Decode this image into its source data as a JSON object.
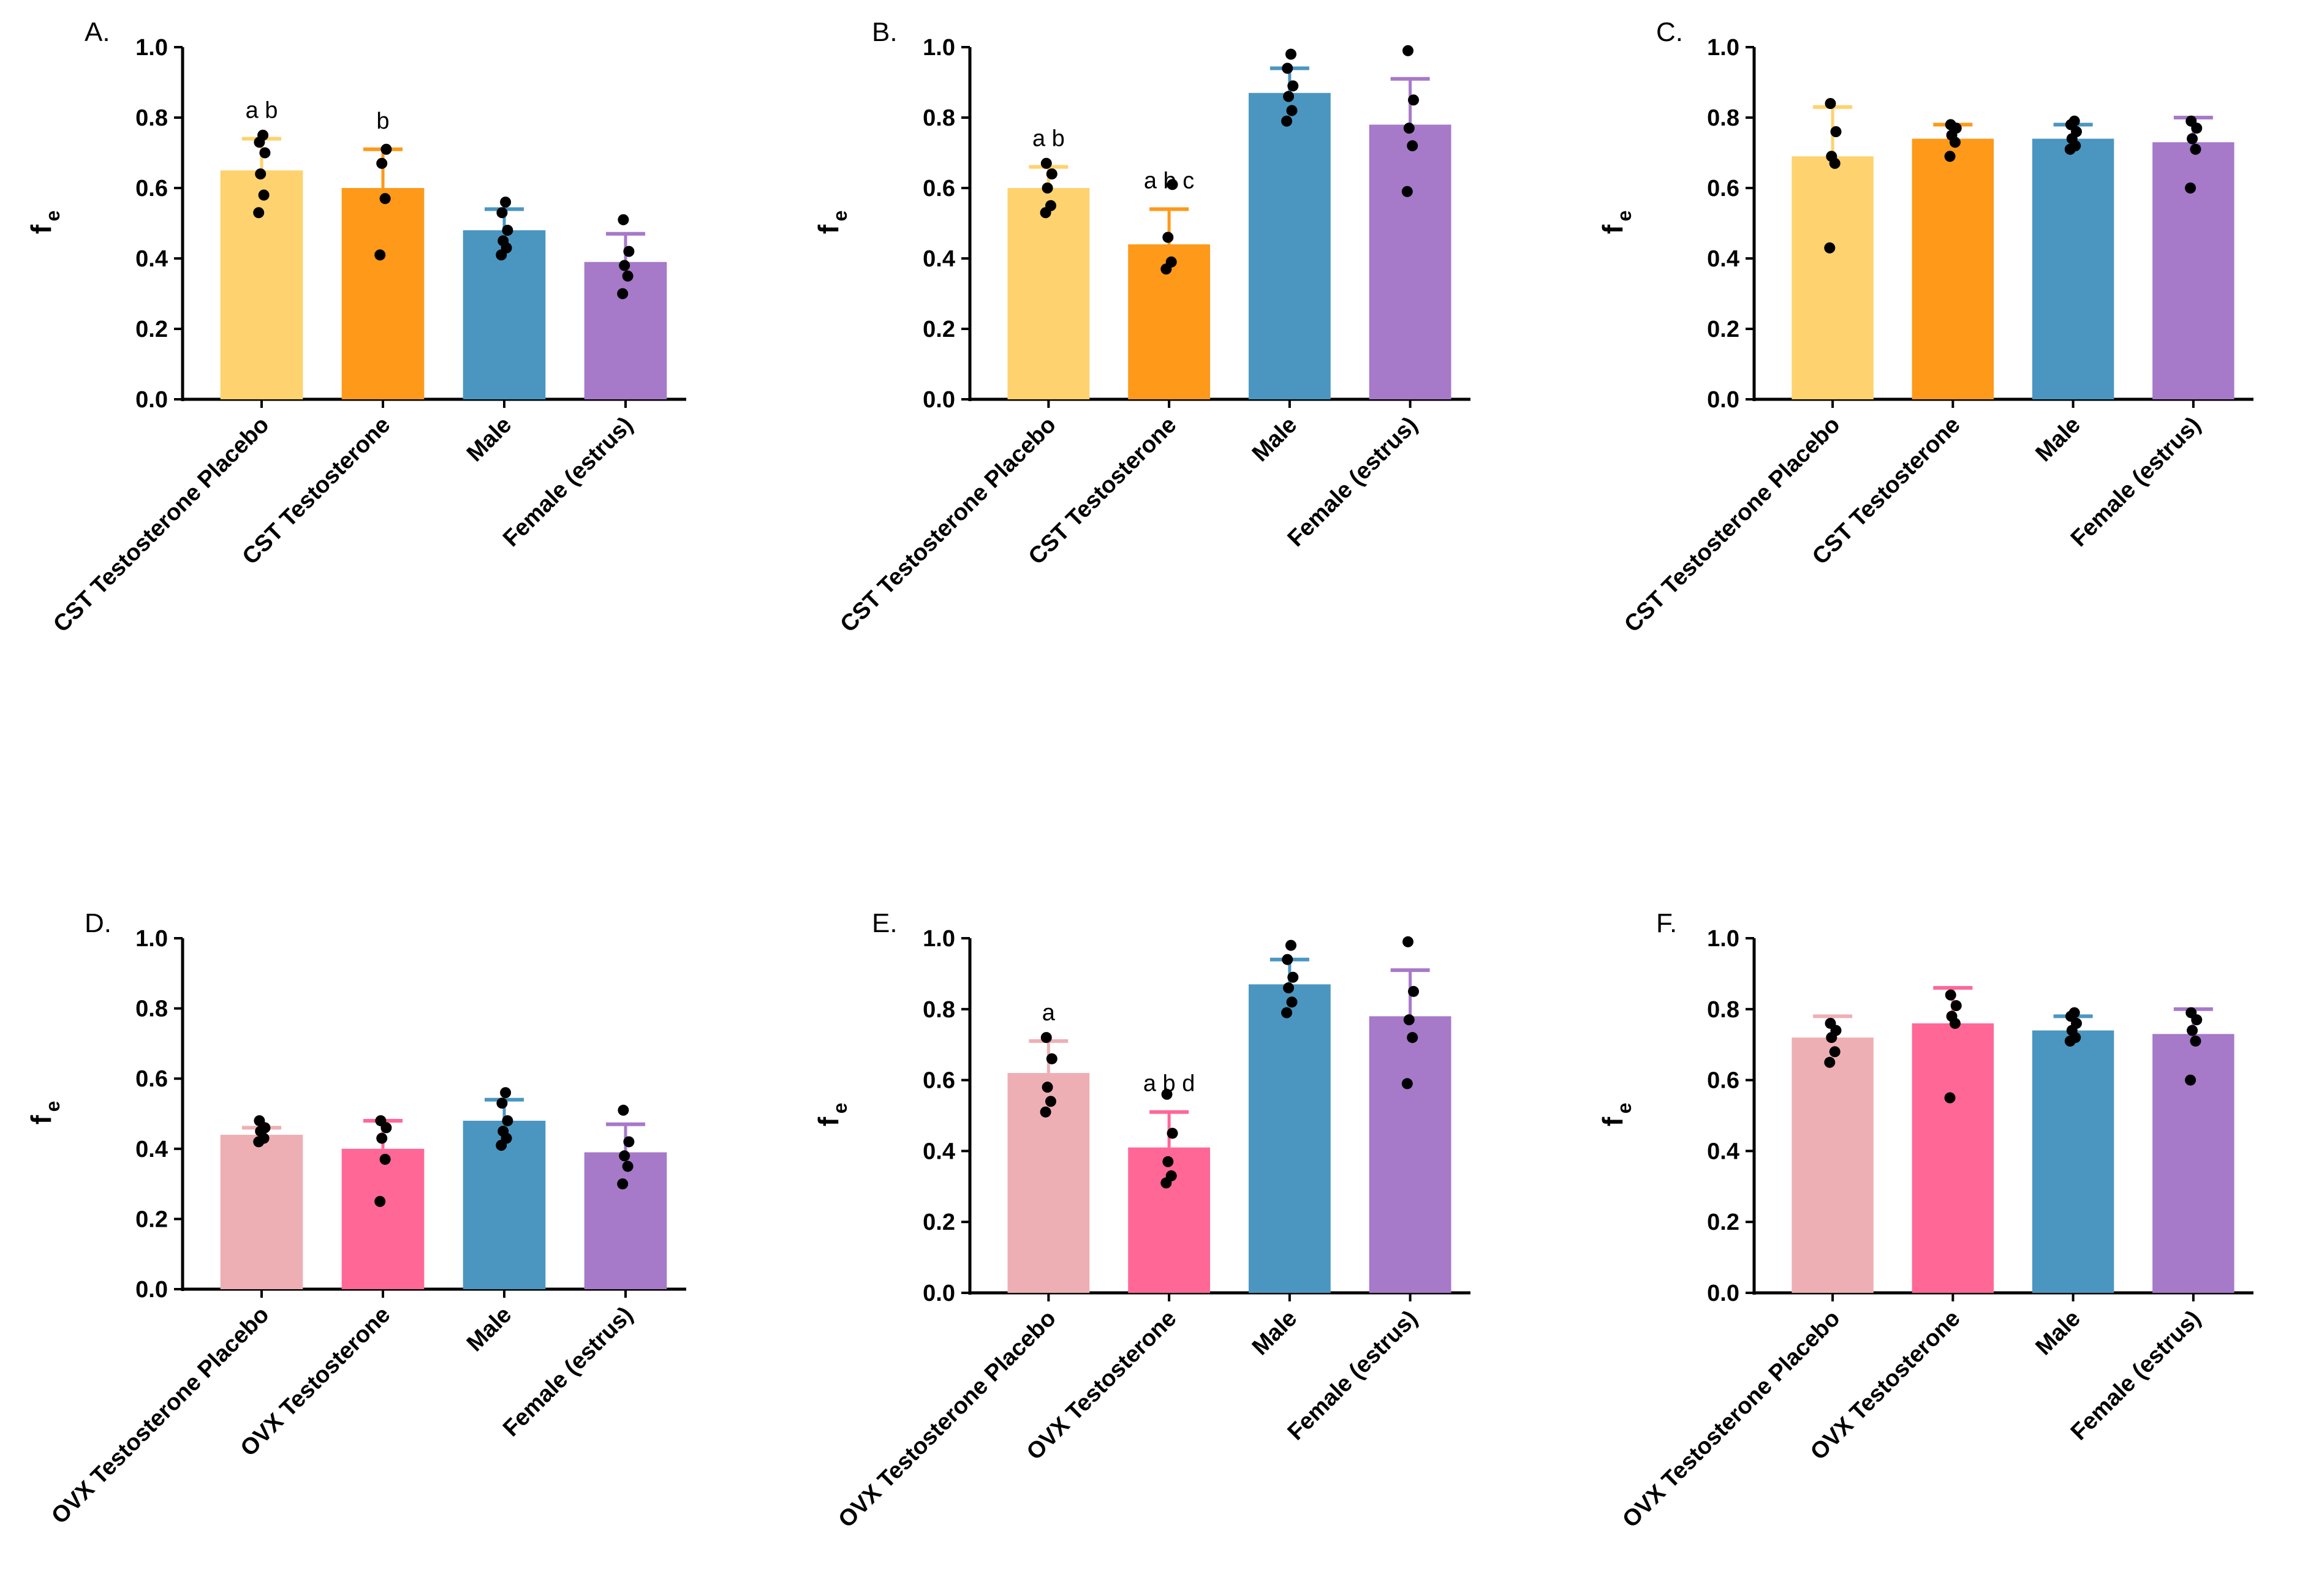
{
  "chart_data": [
    {
      "panel": "A.",
      "type": "bar",
      "ylabel": "f",
      "ylabel_sub": "e",
      "ylim": [
        0,
        1.0
      ],
      "yticks": [
        "0.0",
        "0.2",
        "0.4",
        "0.6",
        "0.8",
        "1.0"
      ],
      "categories": [
        "CST Testosterone Placebo",
        "CST Testosterone",
        "Male",
        "Female (estrus)"
      ],
      "values": [
        0.65,
        0.6,
        0.48,
        0.39
      ],
      "errors": [
        0.09,
        0.11,
        0.06,
        0.08
      ],
      "colors": [
        "#FED26E",
        "#FE9919",
        "#4A96C1",
        "#A779C9"
      ],
      "annotations": [
        "a b",
        "b",
        "",
        ""
      ],
      "points": [
        [
          0.53,
          0.58,
          0.64,
          0.7,
          0.73,
          0.75
        ],
        [
          0.41,
          0.57,
          0.67,
          0.71
        ],
        [
          0.41,
          0.43,
          0.45,
          0.48,
          0.53,
          0.56
        ],
        [
          0.3,
          0.35,
          0.38,
          0.42,
          0.51
        ]
      ]
    },
    {
      "panel": "B.",
      "type": "bar",
      "ylabel": "f",
      "ylabel_sub": "e",
      "ylim": [
        0,
        1.0
      ],
      "yticks": [
        "0.0",
        "0.2",
        "0.4",
        "0.6",
        "0.8",
        "1.0"
      ],
      "categories": [
        "CST Testosterone Placebo",
        "CST Testosterone",
        "Male",
        "Female (estrus)"
      ],
      "values": [
        0.6,
        0.44,
        0.87,
        0.78
      ],
      "errors": [
        0.06,
        0.1,
        0.07,
        0.13
      ],
      "colors": [
        "#FED26E",
        "#FE9919",
        "#4A96C1",
        "#A779C9"
      ],
      "annotations": [
        "a b",
        "a b c",
        "",
        ""
      ],
      "points": [
        [
          0.53,
          0.55,
          0.6,
          0.64,
          0.67
        ],
        [
          0.37,
          0.39,
          0.46,
          0.61
        ],
        [
          0.79,
          0.82,
          0.86,
          0.89,
          0.94,
          0.98
        ],
        [
          0.59,
          0.72,
          0.77,
          0.85,
          0.99
        ]
      ]
    },
    {
      "panel": "C.",
      "type": "bar",
      "ylabel": "f",
      "ylabel_sub": "e",
      "ylim": [
        0,
        1.0
      ],
      "yticks": [
        "0.0",
        "0.2",
        "0.4",
        "0.6",
        "0.8",
        "1.0"
      ],
      "categories": [
        "CST Testosterone Placebo",
        "CST Testosterone",
        "Male",
        "Female (estrus)"
      ],
      "values": [
        0.69,
        0.74,
        0.74,
        0.73
      ],
      "errors": [
        0.14,
        0.04,
        0.04,
        0.07
      ],
      "colors": [
        "#FED26E",
        "#FE9919",
        "#4A96C1",
        "#A779C9"
      ],
      "annotations": [
        "",
        "",
        "",
        ""
      ],
      "points": [
        [
          0.43,
          0.67,
          0.69,
          0.76,
          0.84
        ],
        [
          0.69,
          0.73,
          0.75,
          0.77,
          0.78
        ],
        [
          0.71,
          0.72,
          0.74,
          0.76,
          0.78,
          0.79
        ],
        [
          0.6,
          0.71,
          0.74,
          0.77,
          0.79
        ]
      ]
    },
    {
      "panel": "D.",
      "type": "bar",
      "ylabel": "f",
      "ylabel_sub": "e",
      "ylim": [
        0,
        1.0
      ],
      "yticks": [
        "0.0",
        "0.2",
        "0.4",
        "0.6",
        "0.8",
        "1.0"
      ],
      "categories": [
        "OVX Testosterone Placebo",
        "OVX Testosterone",
        "Male",
        "Female (estrus)"
      ],
      "values": [
        0.44,
        0.4,
        0.48,
        0.39
      ],
      "errors": [
        0.02,
        0.08,
        0.06,
        0.08
      ],
      "colors": [
        "#EEAFB4",
        "#FF6797",
        "#4A96C1",
        "#A779C9"
      ],
      "annotations": [
        "",
        "",
        "",
        ""
      ],
      "points": [
        [
          0.42,
          0.43,
          0.45,
          0.46,
          0.48
        ],
        [
          0.25,
          0.37,
          0.43,
          0.46,
          0.48
        ],
        [
          0.41,
          0.43,
          0.45,
          0.48,
          0.53,
          0.56
        ],
        [
          0.3,
          0.35,
          0.38,
          0.42,
          0.51
        ]
      ]
    },
    {
      "panel": "E.",
      "type": "bar",
      "ylabel": "f",
      "ylabel_sub": "e",
      "ylim": [
        0,
        1.0
      ],
      "yticks": [
        "0.0",
        "0.2",
        "0.4",
        "0.6",
        "0.8",
        "1.0"
      ],
      "categories": [
        "OVX Testosterone Placebo",
        "OVX Testosterone",
        "Male",
        "Female (estrus)"
      ],
      "values": [
        0.62,
        0.41,
        0.87,
        0.78
      ],
      "errors": [
        0.09,
        0.1,
        0.07,
        0.13
      ],
      "colors": [
        "#EEAFB4",
        "#FF6797",
        "#4A96C1",
        "#A779C9"
      ],
      "annotations": [
        "a",
        "a b d",
        "",
        ""
      ],
      "points": [
        [
          0.51,
          0.54,
          0.58,
          0.66,
          0.72
        ],
        [
          0.31,
          0.33,
          0.37,
          0.45,
          0.56
        ],
        [
          0.79,
          0.82,
          0.86,
          0.89,
          0.94,
          0.98
        ],
        [
          0.59,
          0.72,
          0.77,
          0.85,
          0.99
        ]
      ]
    },
    {
      "panel": "F.",
      "type": "bar",
      "ylabel": "f",
      "ylabel_sub": "e",
      "ylim": [
        0,
        1.0
      ],
      "yticks": [
        "0.0",
        "0.2",
        "0.4",
        "0.6",
        "0.8",
        "1.0"
      ],
      "categories": [
        "OVX Testosterone Placebo",
        "OVX Testosterone",
        "Male",
        "Female (estrus)"
      ],
      "values": [
        0.72,
        0.76,
        0.74,
        0.73
      ],
      "errors": [
        0.06,
        0.1,
        0.04,
        0.07
      ],
      "colors": [
        "#EEAFB4",
        "#FF6797",
        "#4A96C1",
        "#A779C9"
      ],
      "annotations": [
        "",
        "",
        "",
        ""
      ],
      "points": [
        [
          0.65,
          0.68,
          0.72,
          0.74,
          0.76
        ],
        [
          0.55,
          0.76,
          0.78,
          0.81,
          0.84
        ],
        [
          0.71,
          0.72,
          0.74,
          0.76,
          0.78,
          0.79
        ],
        [
          0.6,
          0.71,
          0.74,
          0.77,
          0.79
        ]
      ]
    }
  ]
}
